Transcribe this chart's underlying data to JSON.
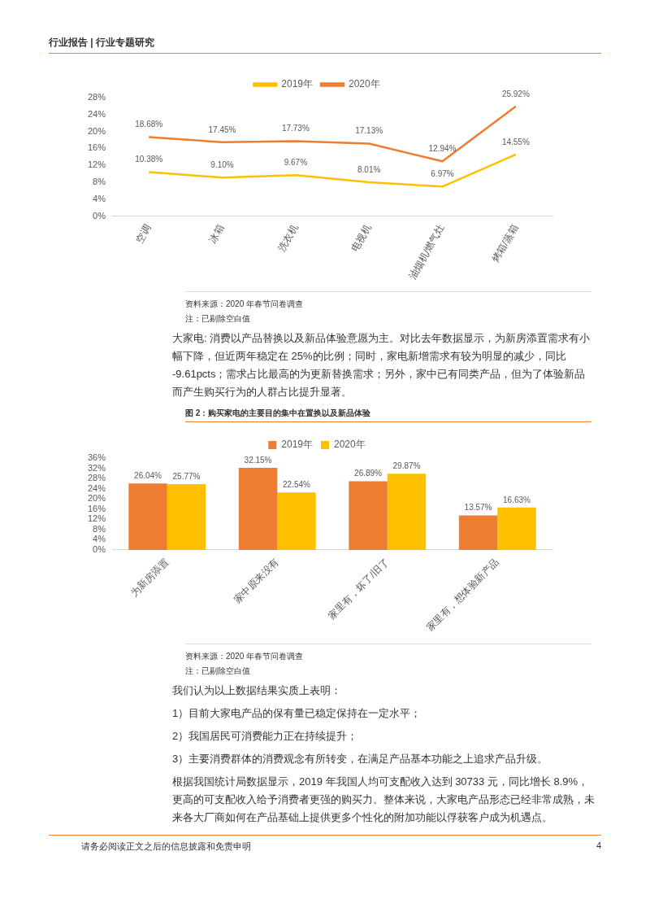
{
  "chart_data": [
    {
      "type": "line",
      "categories": [
        "空调",
        "冰箱",
        "洗衣机",
        "电视机",
        "油烟机/燃气灶",
        "烤箱/蒸箱"
      ],
      "series": [
        {
          "name": "2019年",
          "color": "#ffc000",
          "values": [
            10.38,
            9.1,
            9.67,
            8.01,
            6.97,
            14.55
          ],
          "value_labels": [
            "10.38%",
            "9.10%",
            "9.67%",
            "8.01%",
            "6.97%",
            "14.55%"
          ]
        },
        {
          "name": "2020年",
          "color": "#ed7d31",
          "values": [
            18.68,
            17.45,
            17.73,
            17.13,
            12.94,
            25.92
          ],
          "value_labels": [
            "18.68%",
            "17.45%",
            "17.73%",
            "17.13%",
            "12.94%",
            "25.92%"
          ]
        }
      ],
      "ylim": [
        0,
        28
      ],
      "yticks": [
        {
          "value": 0,
          "label": "0%"
        },
        {
          "value": 4,
          "label": "4%"
        },
        {
          "value": 8,
          "label": "8%"
        },
        {
          "value": 12,
          "label": "12%"
        },
        {
          "value": 16,
          "label": "16%"
        },
        {
          "value": 20,
          "label": "20%"
        },
        {
          "value": 24,
          "label": "24%"
        },
        {
          "value": 28,
          "label": "28%"
        }
      ],
      "grid": false,
      "legend": "top",
      "marker": "none",
      "line_style": "solid",
      "annotations": [
        "行业报告 | 行业专题研究",
        "资料来源：2020 年春节问卷调查",
        "注：已剔除空白值",
        "大家电: 消费以产品替换以及新品体验意愿为主。对比去年数据显示，为新房添置需求有小幅下降，但近两年稳定在 25%的比例；同时，家电新增需求有较为明显的减少，同比 -9.61pcts；需求占比最高的为更新替换需求；另外，家中已有同类产品，但为了体验新品而产生购买行为的人群占比提升显著。"
      ]
    },
    {
      "type": "bar",
      "title": "图 2：购买家电的主要目的集中在置换以及新品体验",
      "categories": [
        "为新房添置",
        "家中原来没有",
        "家里有，坏了/旧了",
        "家里有，想体验新产品"
      ],
      "series": [
        {
          "name": "2019年",
          "color": "#ed7d31",
          "values": [
            26.04,
            32.15,
            26.89,
            13.57
          ],
          "value_labels": [
            "26.04%",
            "32.15%",
            "26.89%",
            "13.57%"
          ]
        },
        {
          "name": "2020年",
          "color": "#ffc000",
          "values": [
            25.77,
            22.54,
            29.87,
            16.63
          ],
          "value_labels": [
            "25.77%",
            "22.54%",
            "29.87%",
            "16.63%"
          ]
        }
      ],
      "ylim": [
        0,
        36
      ],
      "yticks": [
        {
          "value": 0,
          "label": "0%"
        },
        {
          "value": 4,
          "label": "4%"
        },
        {
          "value": 8,
          "label": "8%"
        },
        {
          "value": 12,
          "label": "12%"
        },
        {
          "value": 16,
          "label": "16%"
        },
        {
          "value": 20,
          "label": "20%"
        },
        {
          "value": 24,
          "label": "24%"
        },
        {
          "value": 28,
          "label": "28%"
        },
        {
          "value": 32,
          "label": "32%"
        },
        {
          "value": 36,
          "label": "36%"
        }
      ],
      "grid": false,
      "legend": "top",
      "annotations": [
        "资料来源：2020 年春节问卷调查",
        "注：已剔除空白值",
        "我们认为以上数据结果实质上表明：",
        "1）目前大家电产品的保有量已稳定保持在一定水平；",
        "2）我国居民可消费能力正在持续提升；",
        "3）主要消费群体的消费观念有所转变，在满足产品基本功能之上追求产品升级。",
        "根据我国统计局数据显示，2019 年我国人均可支配收入达到 30733 元，同比增长 8.9%，更高的可支配收入给予消费者更强的购买力。整体来说，大家电产品形态已经非常成熟，未来各大厂商如何在产品基础上提供更多个性化的附加功能以俘获客户成为机遇点。",
        "请务必阅读正文之后的信息披露和免责申明",
        "4"
      ]
    }
  ]
}
